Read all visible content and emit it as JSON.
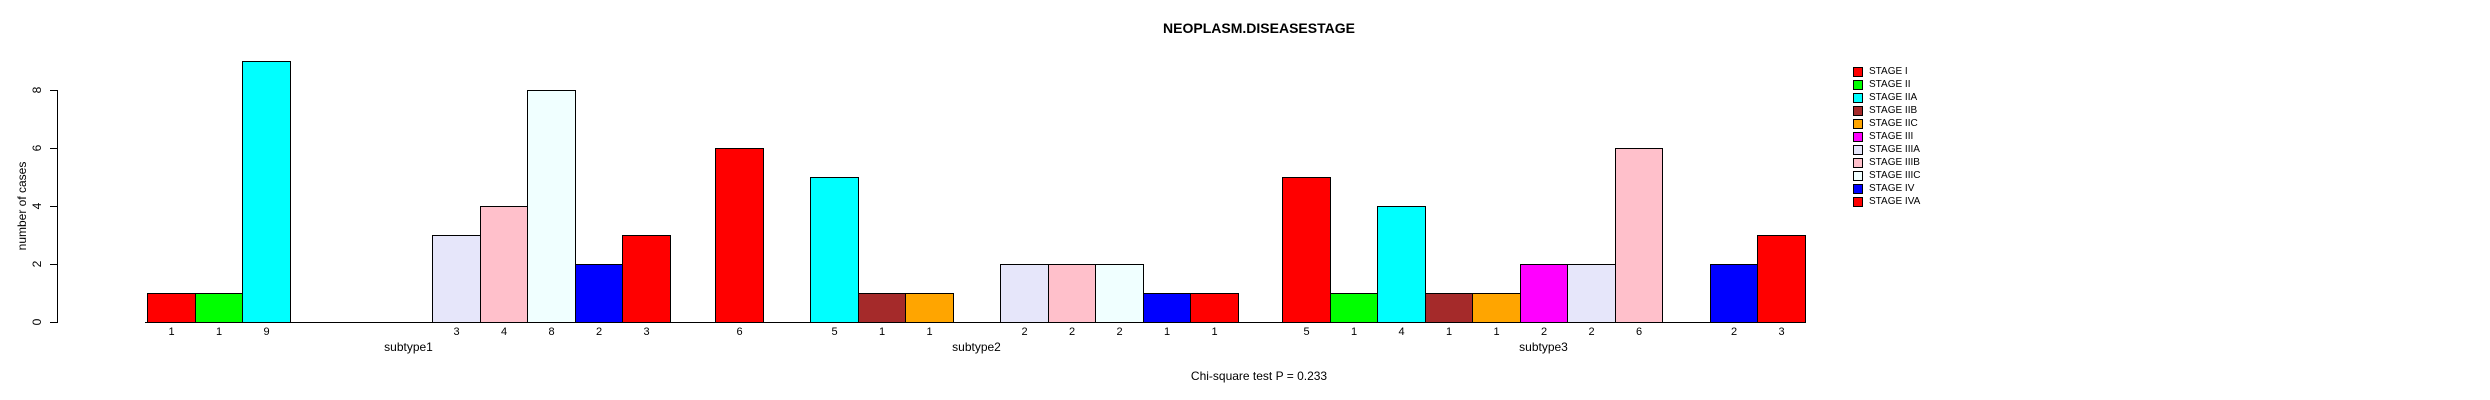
{
  "title": "NEOPLASM.DISEASESTAGE",
  "footer": {
    "text": "Chi-square test P = 0.233"
  },
  "y_axis": {
    "label": "number of cases"
  },
  "chart_data": {
    "type": "bar",
    "title": "NEOPLASM.DISEASESTAGE",
    "xlabel": "",
    "ylabel": "number of cases",
    "ylim": [
      0,
      9
    ],
    "yticks": [
      0,
      2,
      4,
      6,
      8
    ],
    "grid": false,
    "legend_position": "right",
    "annotation": "Chi-square test P = 0.233",
    "bar_value_labels": true,
    "zero_value_bars_hidden": true,
    "categories": [
      "subtype1",
      "subtype2",
      "subtype3"
    ],
    "series": [
      {
        "name": "STAGE I",
        "color": "#FF0000",
        "values": [
          1,
          6,
          5
        ]
      },
      {
        "name": "STAGE II",
        "color": "#00FF00",
        "values": [
          1,
          0,
          1
        ]
      },
      {
        "name": "STAGE IIA",
        "color": "#00FFFF",
        "values": [
          9,
          5,
          4
        ]
      },
      {
        "name": "STAGE IIB",
        "color": "#A52A2A",
        "values": [
          0,
          1,
          1
        ]
      },
      {
        "name": "STAGE IIC",
        "color": "#FFA500",
        "values": [
          0,
          1,
          1
        ]
      },
      {
        "name": "STAGE III",
        "color": "#FF00FF",
        "values": [
          0,
          0,
          2
        ]
      },
      {
        "name": "STAGE IIIA",
        "color": "#E6E6FA",
        "values": [
          3,
          2,
          2
        ]
      },
      {
        "name": "STAGE IIIB",
        "color": "#FFC0CB",
        "values": [
          4,
          2,
          6
        ]
      },
      {
        "name": "STAGE IIIC",
        "color": "#F0FFFF",
        "values": [
          8,
          2,
          0
        ]
      },
      {
        "name": "STAGE IV",
        "color": "#0000FF",
        "values": [
          2,
          1,
          2
        ]
      },
      {
        "name": "STAGE IVA",
        "color": "#FF0000",
        "values": [
          3,
          1,
          3
        ]
      }
    ]
  }
}
